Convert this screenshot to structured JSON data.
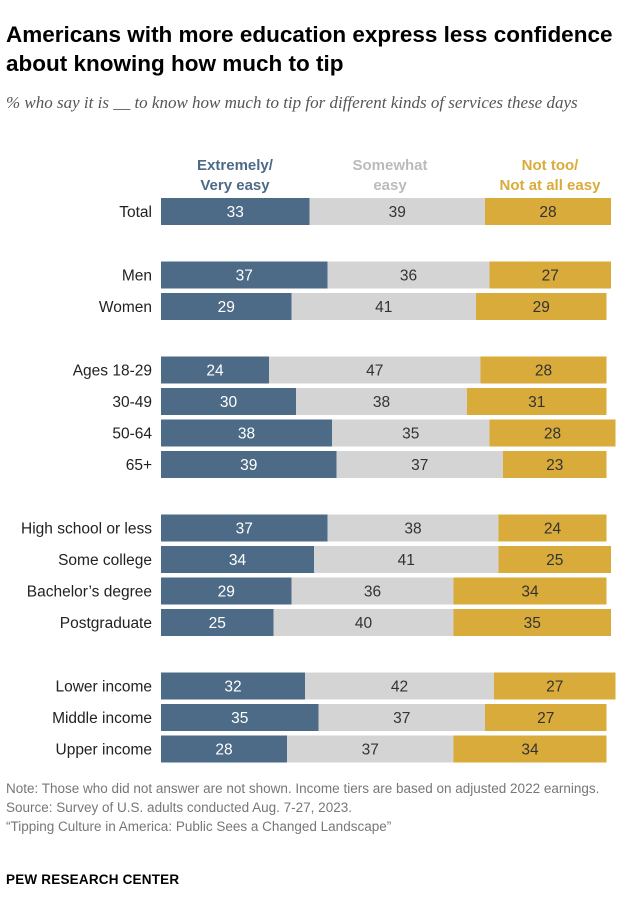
{
  "title": "Americans with more education express less confidence about knowing how much to tip",
  "subtitle": "% who say it is __ to know how much to tip for different kinds of services these days",
  "colors": {
    "easy": "#4d6b87",
    "somewhat": "#d4d4d4",
    "not_easy": "#d9ab3a",
    "easy_text": "#ffffff",
    "somewhat_text": "#333333",
    "not_easy_text": "#333333"
  },
  "legend": {
    "easy": {
      "line1": "Extremely/",
      "line2": "Very easy"
    },
    "somewhat": {
      "line1": "Somewhat",
      "line2": "easy"
    },
    "not_easy": {
      "line1": "Not too/",
      "line2": "Not at all easy"
    }
  },
  "chart_data": {
    "type": "bar",
    "orientation": "horizontal",
    "stacked": true,
    "title": "Americans with more education express less confidence about knowing how much to tip",
    "series_names": [
      "Extremely/Very easy",
      "Somewhat easy",
      "Not too/Not at all easy"
    ],
    "groups": [
      {
        "rows": [
          {
            "label": "Total",
            "values": [
              33,
              39,
              28
            ]
          }
        ]
      },
      {
        "rows": [
          {
            "label": "Men",
            "values": [
              37,
              36,
              27
            ]
          },
          {
            "label": "Women",
            "values": [
              29,
              41,
              29
            ]
          }
        ]
      },
      {
        "rows": [
          {
            "label": "Ages 18-29",
            "values": [
              24,
              47,
              28
            ]
          },
          {
            "label": "30-49",
            "values": [
              30,
              38,
              31
            ]
          },
          {
            "label": "50-64",
            "values": [
              38,
              35,
              28
            ]
          },
          {
            "label": "65+",
            "values": [
              39,
              37,
              23
            ]
          }
        ]
      },
      {
        "rows": [
          {
            "label": "High school or less",
            "values": [
              37,
              38,
              24
            ]
          },
          {
            "label": "Some college",
            "values": [
              34,
              41,
              25
            ]
          },
          {
            "label": "Bachelor’s degree",
            "values": [
              29,
              36,
              34
            ]
          },
          {
            "label": "Postgraduate",
            "values": [
              25,
              40,
              35
            ]
          }
        ]
      },
      {
        "rows": [
          {
            "label": "Lower income",
            "values": [
              32,
              42,
              27
            ]
          },
          {
            "label": "Middle income",
            "values": [
              35,
              37,
              27
            ]
          },
          {
            "label": "Upper income",
            "values": [
              28,
              37,
              34
            ]
          }
        ]
      }
    ]
  },
  "notes": {
    "note": "Note: Those who did not answer are not shown. Income tiers are based on adjusted 2022 earnings.",
    "source": "Source: Survey of U.S. adults conducted Aug. 7-27, 2023.",
    "report": "“Tipping Culture in America: Public Sees a Changed Landscape”"
  },
  "brand": "PEW RESEARCH CENTER"
}
